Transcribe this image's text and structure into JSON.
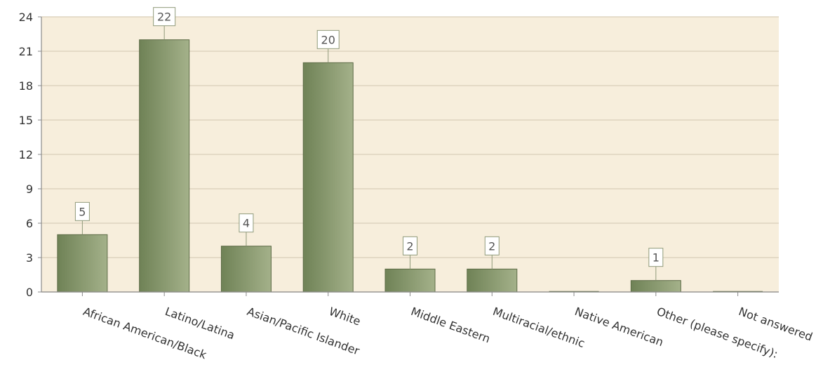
{
  "chart_data": {
    "type": "bar",
    "categories": [
      "African American/Black",
      "Latino/Latina",
      "Asian/Pacific Islander",
      "White",
      "Middle Eastern",
      "Multiracial/ethnic",
      "Native American",
      "Other (please specify):",
      "Not answered"
    ],
    "values": [
      5,
      22,
      4,
      20,
      2,
      2,
      0,
      1,
      0
    ],
    "data_labels": [
      "5",
      "22",
      "4",
      "20",
      "2",
      "2",
      "",
      "1",
      ""
    ],
    "title": "",
    "xlabel": "",
    "ylabel": "",
    "ylim": [
      0,
      24
    ],
    "yticks": [
      0,
      3,
      6,
      9,
      12,
      15,
      18,
      21,
      24
    ],
    "grid": true,
    "legend": "none",
    "colors": {
      "plot_background": "#f7eedc",
      "bar_dark": "#6f8256",
      "bar_light": "#a4b18a",
      "bar_stroke": "#5c6b46",
      "gridline": "#d9ceb8",
      "axis": "#8a8a8a",
      "label_box_border": "#8f9a7a",
      "label_box_fill": "#ffffff"
    }
  }
}
